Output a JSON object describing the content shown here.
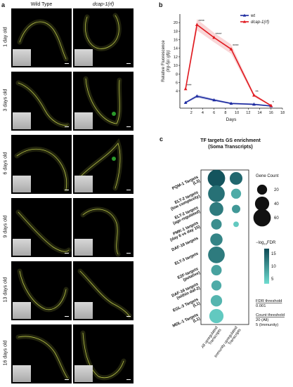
{
  "panel_a": {
    "letter": "a",
    "columns": [
      "Wild Type",
      "dcap-1(rf)"
    ],
    "rows": [
      "1 day old",
      "3 days old",
      "6 days old",
      "9 days old",
      "13 days old",
      "16 days old"
    ],
    "worm_color": "#b8c448",
    "gfp_color": "#3cdc3c"
  },
  "panel_b": {
    "letter": "b",
    "chart_data": {
      "type": "line",
      "ylabel": "Relative Fluorescence (irg-5p::gfp)",
      "xlabel": "Days",
      "xlim": [
        0,
        18
      ],
      "ylim": [
        0,
        22
      ],
      "xticks": [
        2,
        4,
        6,
        8,
        10,
        12,
        14,
        16,
        18
      ],
      "yticks": [
        4,
        6,
        8,
        10,
        12,
        14,
        16,
        18,
        20
      ],
      "legend_position": "top-right",
      "series": [
        {
          "name": "wt",
          "color": "#1c2aa0",
          "marker": "triangle",
          "x": [
            1,
            3,
            6,
            9,
            13,
            16
          ],
          "values": [
            1.3,
            2.8,
            1.9,
            1.1,
            0.9,
            0.5
          ],
          "sem": [
            0.2,
            0.4,
            0.3,
            0.2,
            0.2,
            0.1
          ]
        },
        {
          "name": "dcap-1(rf)",
          "color": "#e0191f",
          "marker": "triangle",
          "x": [
            1,
            3,
            6,
            9,
            13,
            16
          ],
          "values": [
            4.5,
            19.5,
            16.5,
            13.8,
            3.0,
            0.6
          ],
          "sem": [
            0.5,
            1.3,
            1.1,
            1.1,
            0.4,
            0.1
          ],
          "significance": [
            "***",
            "****",
            "****",
            "****",
            "**",
            "*"
          ]
        }
      ]
    }
  },
  "panel_c": {
    "letter": "c",
    "chart_data": {
      "type": "scatter",
      "title": "TF targets GS enrichment",
      "subtitle": "(Soma Transcripts)",
      "categories": [
        "PQM-1 Targets (L3)",
        "ELT-2 targets (low complexity)",
        "ELT-2 targets (age-regulated)",
        "PMK-1 targets (day 6 vs day 15)",
        "DAF-16 targets",
        "ELT-3 targets",
        "E2F-targets (putative)",
        "DAF-16 targets (within daf-2)",
        "EGL-3 Targets (L1)",
        "MDL-1 Targets (L1)"
      ],
      "columns": [
        "All upregulated Transcripts",
        "Immunity upregulated Transcripts"
      ],
      "points": [
        {
          "row": 0,
          "col": 0,
          "gene_count": 60,
          "neg_log10_fdr": 17
        },
        {
          "row": 0,
          "col": 1,
          "gene_count": 32,
          "neg_log10_fdr": 15
        },
        {
          "row": 1,
          "col": 0,
          "gene_count": 55,
          "neg_log10_fdr": 14
        },
        {
          "row": 1,
          "col": 1,
          "gene_count": 20,
          "neg_log10_fdr": 8
        },
        {
          "row": 2,
          "col": 0,
          "gene_count": 38,
          "neg_log10_fdr": 13
        },
        {
          "row": 2,
          "col": 1,
          "gene_count": 14,
          "neg_log10_fdr": 10
        },
        {
          "row": 3,
          "col": 0,
          "gene_count": 22,
          "neg_log10_fdr": 11
        },
        {
          "row": 3,
          "col": 1,
          "gene_count": 6,
          "neg_log10_fdr": 5
        },
        {
          "row": 4,
          "col": 0,
          "gene_count": 30,
          "neg_log10_fdr": 12
        },
        {
          "row": 5,
          "col": 0,
          "gene_count": 55,
          "neg_log10_fdr": 13
        },
        {
          "row": 6,
          "col": 0,
          "gene_count": 22,
          "neg_log10_fdr": 9
        },
        {
          "row": 7,
          "col": 0,
          "gene_count": 20,
          "neg_log10_fdr": 8
        },
        {
          "row": 8,
          "col": 0,
          "gene_count": 26,
          "neg_log10_fdr": 7
        },
        {
          "row": 9,
          "col": 0,
          "gene_count": 40,
          "neg_log10_fdr": 5
        }
      ],
      "size_legend": {
        "title": "Gene Count",
        "values": [
          20,
          40,
          60
        ]
      },
      "color_legend": {
        "title": "−log10FDR",
        "ticks": [
          15,
          10,
          5
        ],
        "low_color": "#6fdcd0",
        "high_color": "#0d4a55"
      },
      "notes": [
        {
          "title": "FDR threshold",
          "value": "0.001"
        },
        {
          "title": "Count threshold",
          "lines": [
            "20 (All)",
            "5 (Immunity)"
          ]
        }
      ]
    }
  }
}
